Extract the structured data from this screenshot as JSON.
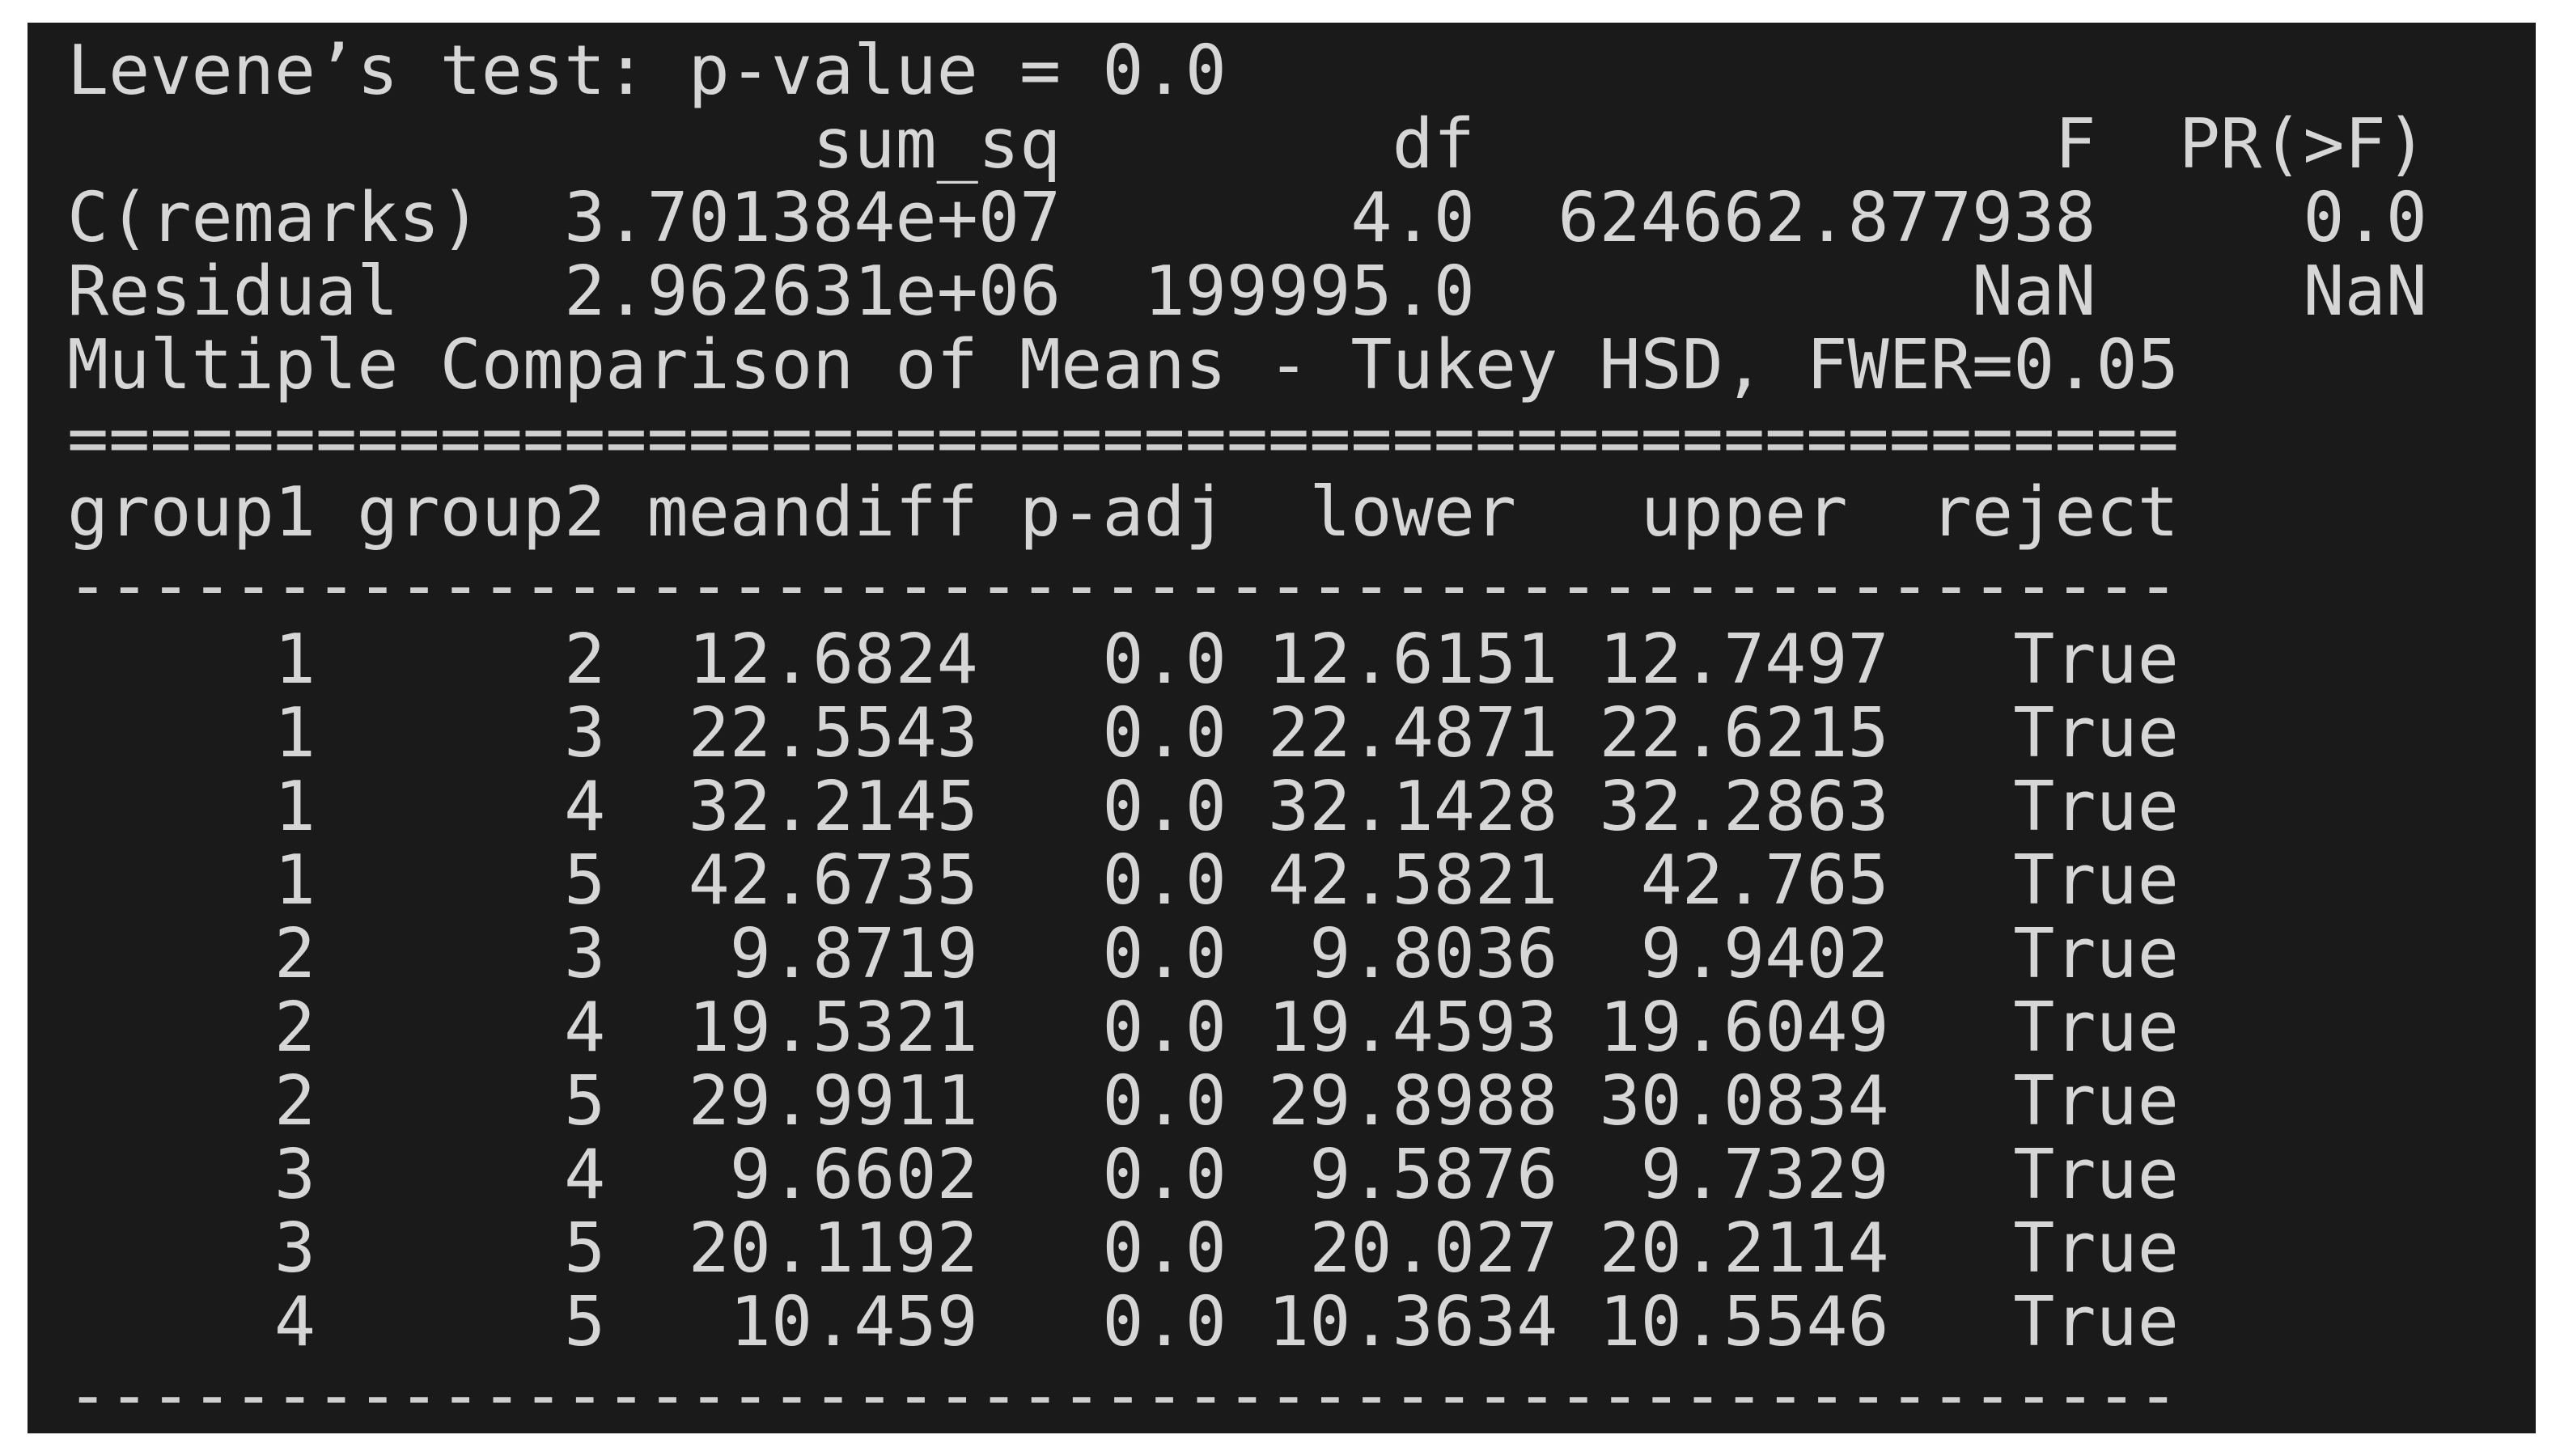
{
  "terminal": {
    "background_color": "#1a1a1a",
    "text_color": "#d6d6d6",
    "page_background": "#ffffff",
    "levene": {
      "label": "Levene’s test",
      "p_value": "0.0"
    },
    "anova_table": {
      "columns": [
        "sum_sq",
        "df",
        "F",
        "PR(>F)"
      ],
      "rows": [
        {
          "name": "C(remarks)",
          "sum_sq": "3.701384e+07",
          "df": "4.0",
          "F": "624662.877938",
          "PR_F": "0.0"
        },
        {
          "name": "Residual",
          "sum_sq": "2.962631e+06",
          "df": "199995.0",
          "F": "NaN",
          "PR_F": "NaN"
        }
      ]
    },
    "tukey_table": {
      "title": "Multiple Comparison of Means - Tukey HSD, FWER=0.05",
      "columns": [
        "group1",
        "group2",
        "meandiff",
        "p-adj",
        "lower",
        "upper",
        "reject"
      ],
      "rows": [
        {
          "group1": "1",
          "group2": "2",
          "meandiff": "12.6824",
          "p_adj": "0.0",
          "lower": "12.6151",
          "upper": "12.7497",
          "reject": "True"
        },
        {
          "group1": "1",
          "group2": "3",
          "meandiff": "22.5543",
          "p_adj": "0.0",
          "lower": "22.4871",
          "upper": "22.6215",
          "reject": "True"
        },
        {
          "group1": "1",
          "group2": "4",
          "meandiff": "32.2145",
          "p_adj": "0.0",
          "lower": "32.1428",
          "upper": "32.2863",
          "reject": "True"
        },
        {
          "group1": "1",
          "group2": "5",
          "meandiff": "42.6735",
          "p_adj": "0.0",
          "lower": "42.5821",
          "upper": "42.765",
          "reject": "True"
        },
        {
          "group1": "2",
          "group2": "3",
          "meandiff": "9.8719",
          "p_adj": "0.0",
          "lower": "9.8036",
          "upper": "9.9402",
          "reject": "True"
        },
        {
          "group1": "2",
          "group2": "4",
          "meandiff": "19.5321",
          "p_adj": "0.0",
          "lower": "19.4593",
          "upper": "19.6049",
          "reject": "True"
        },
        {
          "group1": "2",
          "group2": "5",
          "meandiff": "29.9911",
          "p_adj": "0.0",
          "lower": "29.8988",
          "upper": "30.0834",
          "reject": "True"
        },
        {
          "group1": "3",
          "group2": "4",
          "meandiff": "9.6602",
          "p_adj": "0.0",
          "lower": "9.5876",
          "upper": "9.7329",
          "reject": "True"
        },
        {
          "group1": "3",
          "group2": "5",
          "meandiff": "20.1192",
          "p_adj": "0.0",
          "lower": "20.027",
          "upper": "20.2114",
          "reject": "True"
        },
        {
          "group1": "4",
          "group2": "5",
          "meandiff": "10.459",
          "p_adj": "0.0",
          "lower": "10.3634",
          "upper": "10.5546",
          "reject": "True"
        }
      ]
    },
    "lines": [
      "Levene’s test: p-value = 0.0",
      "                  sum_sq        df              F  PR(>F)",
      "C(remarks)  3.701384e+07       4.0  624662.877938     0.0",
      "Residual    2.962631e+06  199995.0            NaN     NaN",
      "Multiple Comparison of Means - Tukey HSD, FWER=0.05",
      "===================================================",
      "group1 group2 meandiff p-adj  lower   upper  reject",
      "---------------------------------------------------",
      "     1      2  12.6824   0.0 12.6151 12.7497   True",
      "     1      3  22.5543   0.0 22.4871 22.6215   True",
      "     1      4  32.2145   0.0 32.1428 32.2863   True",
      "     1      5  42.6735   0.0 42.5821  42.765   True",
      "     2      3   9.8719   0.0  9.8036  9.9402   True",
      "     2      4  19.5321   0.0 19.4593 19.6049   True",
      "     2      5  29.9911   0.0 29.8988 30.0834   True",
      "     3      4   9.6602   0.0  9.5876  9.7329   True",
      "     3      5  20.1192   0.0  20.027 20.2114   True",
      "     4      5   10.459   0.0 10.3634 10.5546   True",
      "---------------------------------------------------"
    ]
  }
}
